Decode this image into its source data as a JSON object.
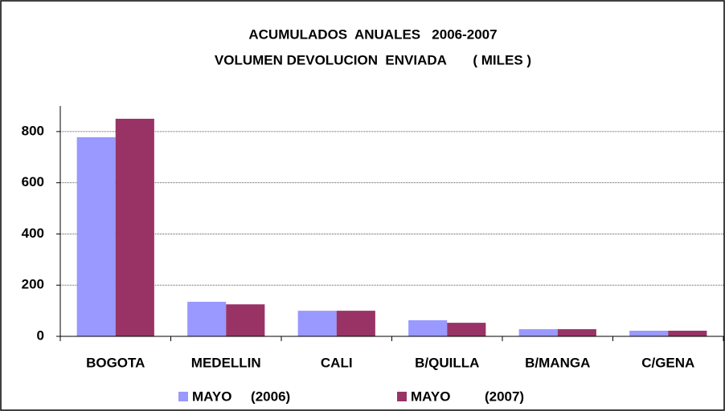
{
  "chart_data": {
    "type": "bar",
    "title": [
      "ACUMULADOS  ANUALES   2006-2007",
      "VOLUMEN DEVOLUCION  ENVIADA       ( MILES )"
    ],
    "categories": [
      "BOGOTA",
      "MEDELLIN",
      "CALI",
      "B/QUILLA",
      "B/MANGA",
      "C/GENA"
    ],
    "series": [
      {
        "name": "MAYO     (2006)",
        "color": "#9999ff",
        "values": [
          778,
          135,
          100,
          63,
          28,
          22
        ]
      },
      {
        "name": "MAYO         (2007)",
        "color": "#993366",
        "values": [
          850,
          125,
          100,
          53,
          28,
          22
        ]
      }
    ],
    "ylim": [
      0,
      900
    ],
    "yticks": [
      0,
      200,
      400,
      600,
      800
    ],
    "grid": true
  }
}
